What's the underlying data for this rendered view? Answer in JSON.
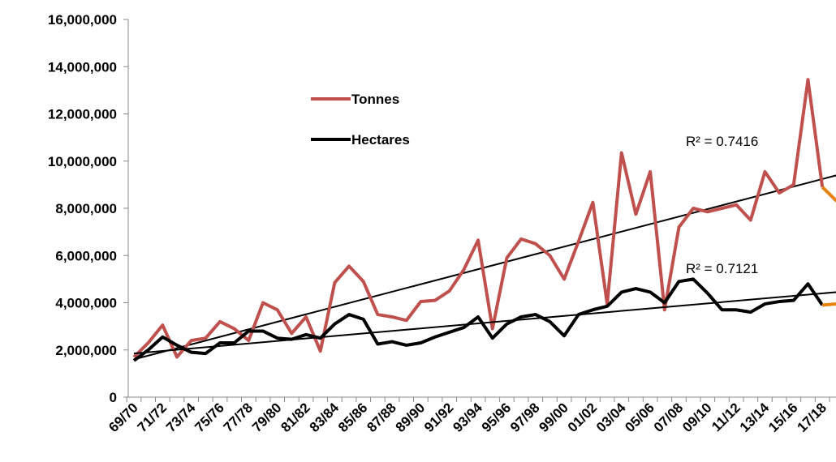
{
  "chart_data": {
    "type": "line",
    "categories": [
      "69/70",
      null,
      "71/72",
      null,
      "73/74",
      null,
      "75/76",
      null,
      "77/78",
      null,
      "79/80",
      null,
      "81/82",
      null,
      "83/84",
      null,
      "85/86",
      null,
      "87/88",
      null,
      "89/90",
      null,
      "91/92",
      null,
      "93/94",
      null,
      "95/96",
      null,
      "97/98",
      null,
      "99/00",
      null,
      "01/02",
      null,
      "03/04",
      null,
      "05/06",
      null,
      "07/08",
      null,
      "09/10",
      null,
      "11/12",
      null,
      "13/14",
      null,
      "15/16",
      null,
      "17/18",
      null
    ],
    "series": [
      {
        "name": "Tonnes",
        "color": "#c0504d",
        "last_segment_color": "#e8820c",
        "values": [
          1700000,
          2300000,
          3050000,
          1700000,
          2400000,
          2500000,
          3200000,
          2900000,
          2400000,
          4000000,
          3700000,
          2700000,
          3400000,
          1950000,
          4850000,
          5550000,
          4900000,
          3500000,
          3400000,
          3250000,
          4050000,
          4100000,
          4500000,
          5400000,
          6650000,
          2900000,
          5900000,
          6700000,
          6500000,
          6000000,
          5000000,
          6600000,
          8250000,
          3950000,
          10350000,
          7750000,
          9550000,
          3700000,
          7200000,
          8000000,
          7850000,
          8000000,
          8150000,
          7500000,
          9550000,
          8650000,
          9000000,
          13450000,
          8900000,
          8300000
        ],
        "trend": {
          "start": 1600000,
          "end": 9400000,
          "label": "R² = 0.7416"
        }
      },
      {
        "name": "Hectares",
        "color": "#000000",
        "last_segment_color": "#e8820c",
        "values": [
          1550000,
          2000000,
          2550000,
          2200000,
          1900000,
          1850000,
          2300000,
          2300000,
          2800000,
          2800000,
          2500000,
          2450000,
          2650000,
          2500000,
          3100000,
          3500000,
          3300000,
          2250000,
          2350000,
          2200000,
          2300000,
          2550000,
          2750000,
          2950000,
          3400000,
          2500000,
          3100000,
          3400000,
          3500000,
          3200000,
          2600000,
          3500000,
          3700000,
          3850000,
          4450000,
          4600000,
          4450000,
          4000000,
          4900000,
          5000000,
          4400000,
          3700000,
          3700000,
          3600000,
          3950000,
          4050000,
          4100000,
          4800000,
          3900000,
          3950000
        ],
        "trend": {
          "start": 1850000,
          "end": 4450000,
          "label": "R² = 0.7121"
        }
      }
    ],
    "trend_color": "#000000",
    "ylim": [
      0,
      16000000
    ],
    "yticks": [
      0,
      {
        "value": 2000000,
        "label": "2,000,000"
      },
      {
        "value": 4000000,
        "label": "4,000,000"
      },
      {
        "value": 6000000,
        "label": "6,000,000"
      },
      {
        "value": 8000000,
        "label": "8,000,000"
      },
      {
        "value": 10000000,
        "label": "10,000,000"
      },
      {
        "value": 12000000,
        "label": "12,000,000"
      },
      {
        "value": 14000000,
        "label": "14,000,000"
      },
      {
        "value": 16000000,
        "label": "16,000,000"
      }
    ],
    "grid": false
  }
}
